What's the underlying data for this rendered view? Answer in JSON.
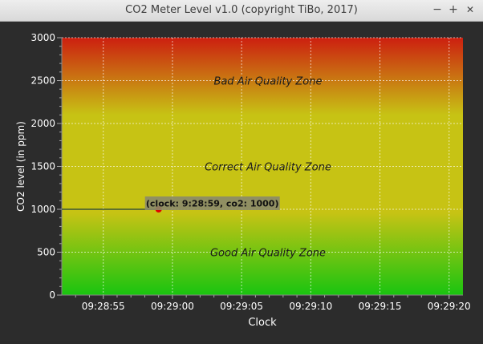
{
  "window": {
    "title": "CO2 Meter Level v1.0 (copyright TiBo, 2017)",
    "minimize_glyph": "−",
    "maximize_glyph": "+",
    "close_glyph": "✕",
    "icons": [
      "minimize-icon",
      "maximize-icon",
      "close-icon"
    ]
  },
  "chart_data": {
    "type": "line",
    "xlabel": "Clock",
    "ylabel": "CO2 level (in ppm)",
    "ylim": [
      0,
      3000
    ],
    "yticks": [
      0,
      500,
      1000,
      1500,
      2000,
      2500,
      3000
    ],
    "xlim": [
      "09:28:52",
      "09:29:21"
    ],
    "xticks": [
      "09:28:55",
      "09:29:00",
      "09:29:05",
      "09:29:10",
      "09:29:15",
      "09:29:20"
    ],
    "grid": true,
    "series": [
      {
        "points": [
          {
            "x": "09:28:52",
            "y": 1000
          },
          {
            "x": "09:28:59",
            "y": 1000
          }
        ]
      }
    ],
    "highlight": {
      "x": "09:28:59",
      "y": 1000,
      "label": "(clock: 9:28:59, co2: 1000)"
    },
    "zones": [
      {
        "label": "Bad Air Quality Zone",
        "y": 2500
      },
      {
        "label": "Correct Air Quality Zone",
        "y": 1500
      },
      {
        "label": "Good Air Quality Zone",
        "y": 500
      }
    ],
    "colors": {
      "bad": "#cc1f10",
      "correct": "#c7c314",
      "good": "#19c410",
      "grid": "#ffffff",
      "line": "#1f3f3f",
      "marker": "#e00000",
      "tooltip_bg": "#8a8a6a",
      "background": "#2c2c2c",
      "axis_text": "#ffffff"
    }
  }
}
